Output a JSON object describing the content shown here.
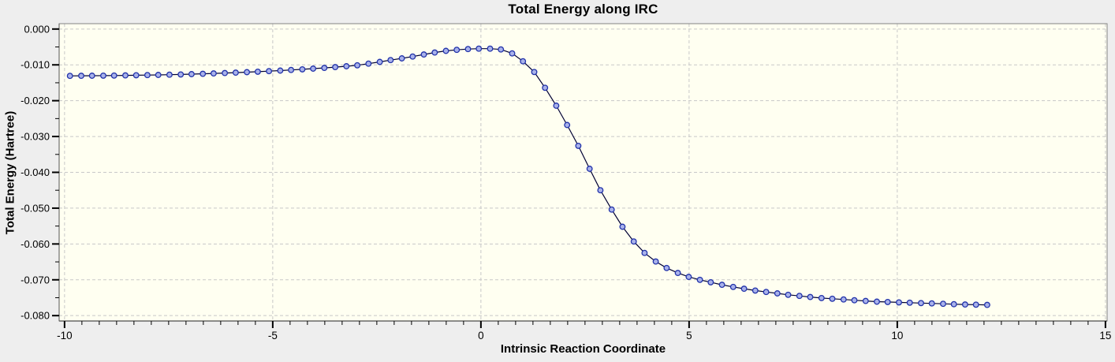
{
  "window": {
    "title": "Total Energy along IRC"
  },
  "chart_data": {
    "type": "line",
    "title": "Total Energy along IRC",
    "xlabel": "Intrinsic Reaction Coordinate",
    "ylabel": "Total Energy (Hartree)",
    "xlim": [
      -10.13,
      15.04
    ],
    "ylim": [
      -0.0815,
      0.0015
    ],
    "x_major_ticks": [
      -10,
      -5,
      0,
      5,
      10,
      15
    ],
    "x_tick_labels": [
      "-10",
      "-5",
      "0",
      "5",
      "10",
      "15"
    ],
    "x_minor_divisions": 12,
    "y_major_ticks": [
      0.0,
      -0.01,
      -0.02,
      -0.03,
      -0.04,
      -0.05,
      -0.06,
      -0.07,
      -0.08
    ],
    "y_tick_labels": [
      "0.000",
      "-0.010",
      "-0.020",
      "-0.030",
      "-0.040",
      "-0.050",
      "-0.060",
      "-0.070",
      "-0.080"
    ],
    "y_minor_divisions": 2,
    "grid": "dashed-major-both-axes",
    "legend": "none",
    "series": [
      {
        "name": "Total Energy",
        "marker": "circle",
        "x": [
          -9.87,
          -9.6,
          -9.34,
          -9.07,
          -8.81,
          -8.54,
          -8.28,
          -8.01,
          -7.75,
          -7.48,
          -7.21,
          -6.95,
          -6.68,
          -6.42,
          -6.15,
          -5.89,
          -5.62,
          -5.36,
          -5.09,
          -4.82,
          -4.56,
          -4.29,
          -4.03,
          -3.76,
          -3.5,
          -3.23,
          -2.97,
          -2.7,
          -2.43,
          -2.17,
          -1.9,
          -1.64,
          -1.37,
          -1.11,
          -0.84,
          -0.58,
          -0.31,
          -0.05,
          0.22,
          0.48,
          0.75,
          1.01,
          1.28,
          1.54,
          1.81,
          2.07,
          2.34,
          2.61,
          2.87,
          3.14,
          3.4,
          3.67,
          3.93,
          4.2,
          4.46,
          4.73,
          4.99,
          5.26,
          5.52,
          5.79,
          6.06,
          6.32,
          6.59,
          6.85,
          7.12,
          7.38,
          7.65,
          7.91,
          8.18,
          8.44,
          8.71,
          8.97,
          9.24,
          9.51,
          9.77,
          10.04,
          10.3,
          10.57,
          10.83,
          11.1,
          11.36,
          11.63,
          11.89,
          12.16
        ],
        "y": [
          -0.01308,
          -0.01306,
          -0.01304,
          -0.01301,
          -0.01298,
          -0.01294,
          -0.0129,
          -0.01285,
          -0.0128,
          -0.01274,
          -0.01267,
          -0.01259,
          -0.0125,
          -0.0124,
          -0.01229,
          -0.01217,
          -0.01204,
          -0.0119,
          -0.01175,
          -0.01159,
          -0.01142,
          -0.01124,
          -0.01105,
          -0.01085,
          -0.01063,
          -0.01039,
          -0.01013,
          -0.00966,
          -0.00917,
          -0.00868,
          -0.00818,
          -0.00769,
          -0.0071,
          -0.00655,
          -0.0061,
          -0.0058,
          -0.0056,
          -0.00548,
          -0.00548,
          -0.0057,
          -0.0068,
          -0.009,
          -0.012,
          -0.0164,
          -0.0214,
          -0.0268,
          -0.0326,
          -0.039,
          -0.045,
          -0.0504,
          -0.0552,
          -0.0593,
          -0.0625,
          -0.0649,
          -0.0667,
          -0.0681,
          -0.0692,
          -0.07,
          -0.0707,
          -0.0714,
          -0.072,
          -0.0725,
          -0.073,
          -0.0734,
          -0.0738,
          -0.0742,
          -0.0745,
          -0.0748,
          -0.0751,
          -0.0753,
          -0.0755,
          -0.0757,
          -0.0759,
          -0.0761,
          -0.0762,
          -0.0763,
          -0.0764,
          -0.0765,
          -0.0766,
          -0.0767,
          -0.0768,
          -0.0769,
          -0.07695,
          -0.077
        ]
      }
    ],
    "colors": {
      "outer_background": "#eeeeee",
      "plot_background": "#fffff1",
      "grid": "#c8c8c8",
      "frame": "#848484",
      "line": "#000033",
      "marker_fill": "#a9b2ea",
      "marker_stroke": "#2233aa",
      "text": "#000000"
    }
  }
}
